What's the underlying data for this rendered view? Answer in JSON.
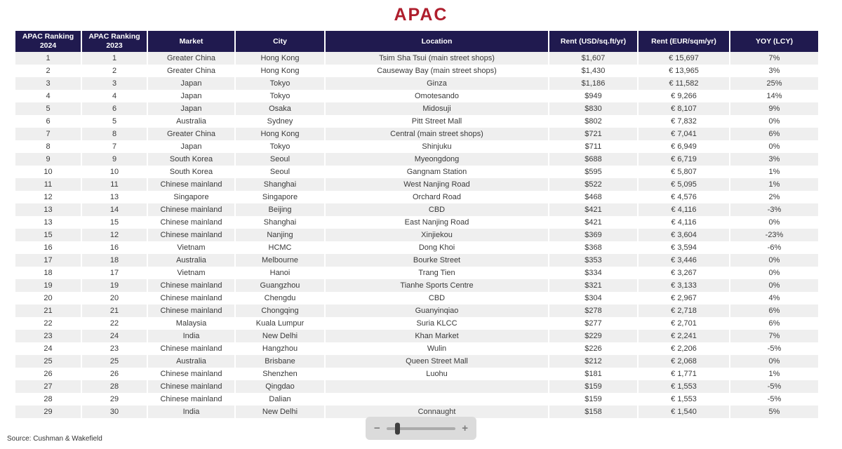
{
  "page": {
    "title": "APAC",
    "source": "Source: Cushman & Wakefield"
  },
  "colors": {
    "title_color": "#AF1E2D",
    "header_bg": "#201A4F",
    "row_alt_bg": "#EFEFEF"
  },
  "zoom_control": {
    "minus_label": "−",
    "plus_label": "+"
  },
  "table": {
    "columns": [
      "APAC Ranking 2024",
      "APAC Ranking 2023",
      "Market",
      "City",
      "Location",
      "Rent (USD/sq.ft/yr)",
      "Rent (EUR/sqm/yr)",
      "YOY (LCY)"
    ],
    "rows": [
      [
        "1",
        "1",
        "Greater China",
        "Hong Kong",
        "Tsim Sha Tsui (main street shops)",
        "$1,607",
        "€ 15,697",
        "7%"
      ],
      [
        "2",
        "2",
        "Greater China",
        "Hong Kong",
        "Causeway Bay (main street shops)",
        "$1,430",
        "€ 13,965",
        "3%"
      ],
      [
        "3",
        "3",
        "Japan",
        "Tokyo",
        "Ginza",
        "$1,186",
        "€ 11,582",
        "25%"
      ],
      [
        "4",
        "4",
        "Japan",
        "Tokyo",
        "Omotesando",
        "$949",
        "€ 9,266",
        "14%"
      ],
      [
        "5",
        "6",
        "Japan",
        "Osaka",
        "Midosuji",
        "$830",
        "€ 8,107",
        "9%"
      ],
      [
        "6",
        "5",
        "Australia",
        "Sydney",
        "Pitt Street Mall",
        "$802",
        "€ 7,832",
        "0%"
      ],
      [
        "7",
        "8",
        "Greater China",
        "Hong Kong",
        "Central (main street shops)",
        "$721",
        "€ 7,041",
        "6%"
      ],
      [
        "8",
        "7",
        "Japan",
        "Tokyo",
        "Shinjuku",
        "$711",
        "€ 6,949",
        "0%"
      ],
      [
        "9",
        "9",
        "South Korea",
        "Seoul",
        "Myeongdong",
        "$688",
        "€ 6,719",
        "3%"
      ],
      [
        "10",
        "10",
        "South Korea",
        "Seoul",
        "Gangnam Station",
        "$595",
        "€ 5,807",
        "1%"
      ],
      [
        "11",
        "11",
        "Chinese mainland",
        "Shanghai",
        "West Nanjing Road",
        "$522",
        "€ 5,095",
        "1%"
      ],
      [
        "12",
        "13",
        "Singapore",
        "Singapore",
        "Orchard Road",
        "$468",
        "€ 4,576",
        "2%"
      ],
      [
        "13",
        "14",
        "Chinese mainland",
        "Beijing",
        "CBD",
        "$421",
        "€ 4,116",
        "-3%"
      ],
      [
        "13",
        "15",
        "Chinese mainland",
        "Shanghai",
        "East Nanjing Road",
        "$421",
        "€ 4,116",
        "0%"
      ],
      [
        "15",
        "12",
        "Chinese mainland",
        "Nanjing",
        "Xinjiekou",
        "$369",
        "€ 3,604",
        "-23%"
      ],
      [
        "16",
        "16",
        "Vietnam",
        "HCMC",
        "Dong Khoi",
        "$368",
        "€ 3,594",
        "-6%"
      ],
      [
        "17",
        "18",
        "Australia",
        "Melbourne",
        "Bourke Street",
        "$353",
        "€ 3,446",
        "0%"
      ],
      [
        "18",
        "17",
        "Vietnam",
        "Hanoi",
        "Trang Tien",
        "$334",
        "€ 3,267",
        "0%"
      ],
      [
        "19",
        "19",
        "Chinese mainland",
        "Guangzhou",
        "Tianhe Sports Centre",
        "$321",
        "€ 3,133",
        "0%"
      ],
      [
        "20",
        "20",
        "Chinese mainland",
        "Chengdu",
        "CBD",
        "$304",
        "€ 2,967",
        "4%"
      ],
      [
        "21",
        "21",
        "Chinese mainland",
        "Chongqing",
        "Guanyinqiao",
        "$278",
        "€ 2,718",
        "6%"
      ],
      [
        "22",
        "22",
        "Malaysia",
        "Kuala Lumpur",
        "Suria KLCC",
        "$277",
        "€ 2,701",
        "6%"
      ],
      [
        "23",
        "24",
        "India",
        "New Delhi",
        "Khan Market",
        "$229",
        "€ 2,241",
        "7%"
      ],
      [
        "24",
        "23",
        "Chinese mainland",
        "Hangzhou",
        "Wulin",
        "$226",
        "€ 2,206",
        "-5%"
      ],
      [
        "25",
        "25",
        "Australia",
        "Brisbane",
        "Queen Street Mall",
        "$212",
        "€ 2,068",
        "0%"
      ],
      [
        "26",
        "26",
        "Chinese mainland",
        "Shenzhen",
        "Luohu",
        "$181",
        "€ 1,771",
        "1%"
      ],
      [
        "27",
        "28",
        "Chinese mainland",
        "Qingdao",
        "",
        "$159",
        "€ 1,553",
        "-5%"
      ],
      [
        "28",
        "29",
        "Chinese mainland",
        "Dalian",
        "",
        "$159",
        "€ 1,553",
        "-5%"
      ],
      [
        "29",
        "30",
        "India",
        "New Delhi",
        "Connaught",
        "$158",
        "€ 1,540",
        "5%"
      ]
    ]
  }
}
